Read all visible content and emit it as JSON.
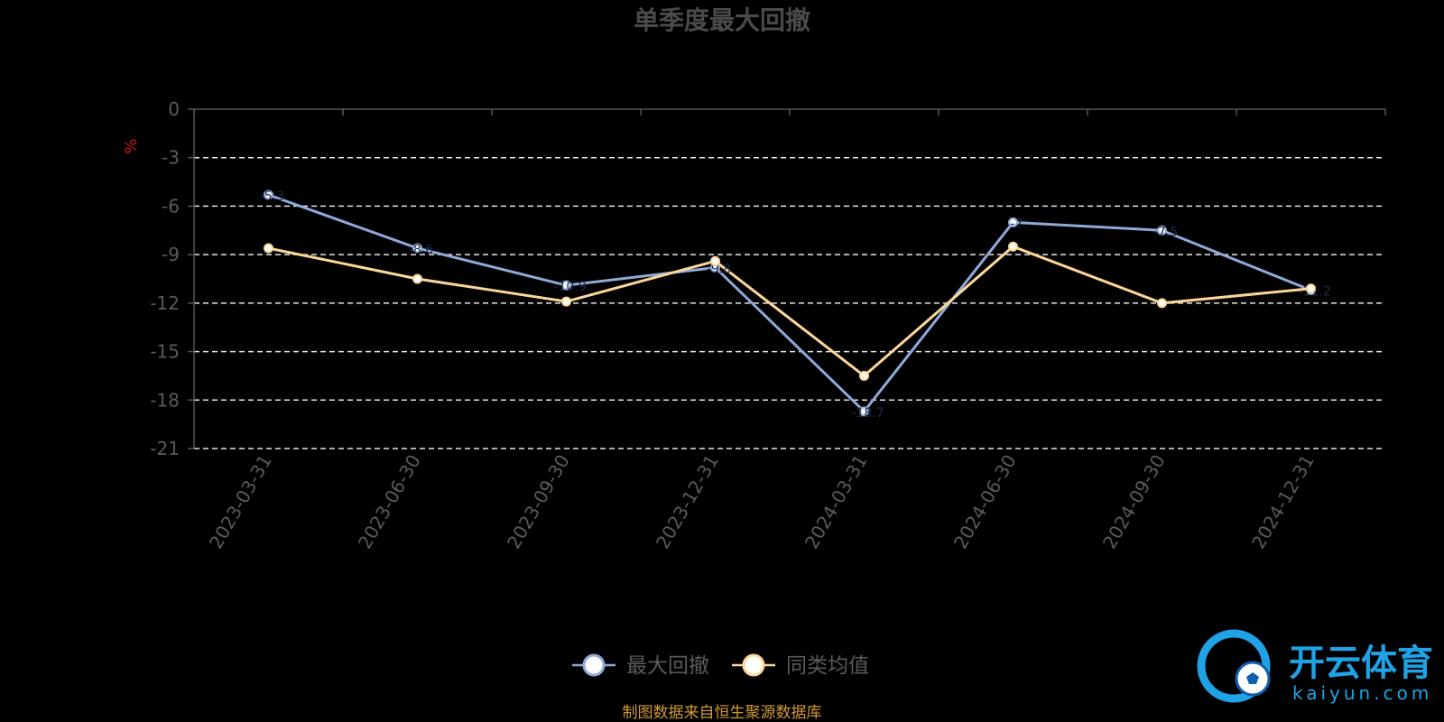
{
  "chart_data": {
    "type": "line",
    "title": "单季度最大回撤",
    "unit": "%",
    "categories": [
      "2023-03-31",
      "2023-06-30",
      "2023-09-30",
      "2023-12-31",
      "2024-03-31",
      "2024-06-30",
      "2024-09-30",
      "2024-12-31"
    ],
    "ylim": [
      -21,
      0
    ],
    "yticks": [
      "0",
      "-3",
      "-6",
      "-9",
      "-12",
      "-15",
      "-18",
      "-21"
    ],
    "grid": true,
    "legend_position": "bottom-center",
    "series": [
      {
        "name": "最大回撤",
        "color": "#8fa9d8",
        "values": [
          -5.3,
          -8.6,
          -10.9,
          -9.8,
          -18.7,
          -7.0,
          -7.5,
          -11.2
        ]
      },
      {
        "name": "同类均值",
        "color": "#fcd699",
        "values": [
          -8.6,
          -10.5,
          -11.9,
          -9.4,
          -16.5,
          -8.5,
          -12.0,
          -11.1
        ]
      }
    ]
  },
  "footer": {
    "source": "制图数据来自恒生聚源数据库"
  },
  "watermark": {
    "logo_text_cn": "开云体育",
    "logo_text_en": "kaiyun.com"
  }
}
